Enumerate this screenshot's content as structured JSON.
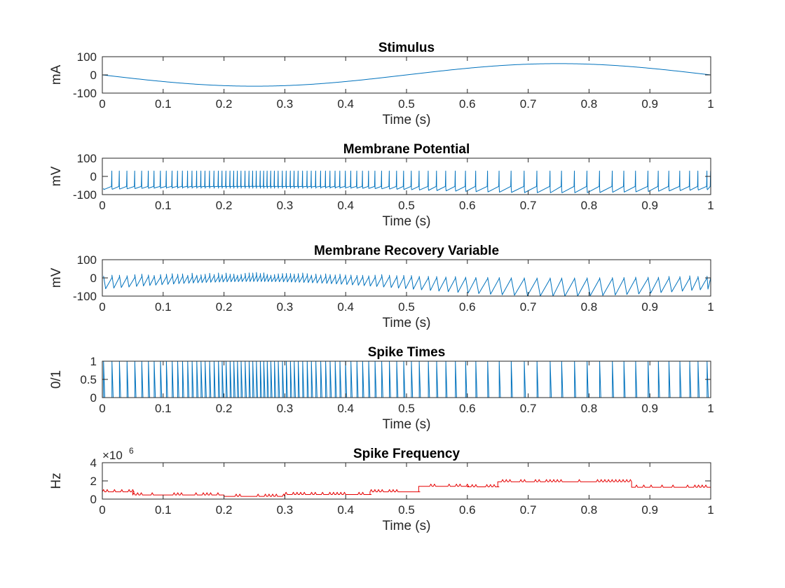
{
  "colors": {
    "blue": "#0072BD",
    "red": "#E60000",
    "axis": "#262626"
  },
  "chart_data": [
    {
      "type": "line",
      "title": "Stimulus",
      "xlabel": "Time (s)",
      "ylabel": "mA",
      "xlim": [
        0,
        1
      ],
      "ylim": [
        -100,
        100
      ],
      "xticks": [
        "0",
        "0.1",
        "0.2",
        "0.3",
        "0.4",
        "0.5",
        "0.6",
        "0.7",
        "0.8",
        "0.9",
        "1"
      ],
      "yticks": [
        "-100",
        "0",
        "100"
      ],
      "grid": false,
      "series": [
        {
          "kind": "sine",
          "color": "blue",
          "amplitude": -62,
          "frequency": 1,
          "x": [
            0,
            0.25,
            0.5,
            0.75,
            1
          ],
          "y": [
            0,
            -62,
            0,
            62,
            0
          ]
        }
      ]
    },
    {
      "type": "line",
      "title": "Membrane Potential",
      "xlabel": "Time (s)",
      "ylabel": "mV",
      "xlim": [
        0,
        1
      ],
      "ylim": [
        -100,
        100
      ],
      "xticks": [
        "0",
        "0.1",
        "0.2",
        "0.3",
        "0.4",
        "0.5",
        "0.6",
        "0.7",
        "0.8",
        "0.9",
        "1"
      ],
      "yticks": [
        "-100",
        "0",
        "100"
      ],
      "grid": false,
      "series": [
        {
          "kind": "spike_train",
          "color": "blue",
          "peak": 30,
          "reset": -65,
          "trough_low": -90,
          "trough_high": -55
        }
      ]
    },
    {
      "type": "line",
      "title": "Membrane Recovery Variable",
      "xlabel": "Time (s)",
      "ylabel": "mV",
      "xlim": [
        0,
        1
      ],
      "ylim": [
        -100,
        100
      ],
      "xticks": [
        "0",
        "0.1",
        "0.2",
        "0.3",
        "0.4",
        "0.5",
        "0.6",
        "0.7",
        "0.8",
        "0.9",
        "1"
      ],
      "yticks": [
        "-100",
        "0",
        "100"
      ],
      "grid": false,
      "series": [
        {
          "kind": "recovery",
          "color": "blue",
          "peak_low": 0,
          "peak_high": 25,
          "trough_low": -100,
          "trough_high": -20
        }
      ]
    },
    {
      "type": "line",
      "title": "Spike Times",
      "xlabel": "Time (s)",
      "ylabel": "0/1",
      "xlim": [
        0,
        1
      ],
      "ylim": [
        0,
        1
      ],
      "xticks": [
        "0",
        "0.1",
        "0.2",
        "0.3",
        "0.4",
        "0.5",
        "0.6",
        "0.7",
        "0.8",
        "0.9",
        "1"
      ],
      "yticks": [
        "0",
        "0.5",
        "1"
      ],
      "grid": false,
      "series": [
        {
          "kind": "binary_spikes",
          "color": "blue"
        }
      ]
    },
    {
      "type": "line",
      "title": "Spike Frequency",
      "xlabel": "Time (s)",
      "ylabel": "Hz",
      "xlim": [
        0,
        1
      ],
      "ylim": [
        0,
        4
      ],
      "y_exponent": {
        "base": "×10",
        "power": "6"
      },
      "xticks": [
        "0",
        "0.1",
        "0.2",
        "0.3",
        "0.4",
        "0.5",
        "0.6",
        "0.7",
        "0.8",
        "0.9",
        "1"
      ],
      "yticks": [
        "0",
        "2",
        "4"
      ],
      "grid": false,
      "series": [
        {
          "kind": "frequency",
          "color": "red",
          "unit_scale": "1e6",
          "levels": [
            {
              "x": [
                0,
                0.05
              ],
              "y": 0.8
            },
            {
              "x": [
                0.05,
                0.2
              ],
              "y": 0.45
            },
            {
              "x": [
                0.2,
                0.3
              ],
              "y": 0.3
            },
            {
              "x": [
                0.3,
                0.44
              ],
              "y": 0.5
            },
            {
              "x": [
                0.44,
                0.52
              ],
              "y": 0.8
            },
            {
              "x": [
                0.52,
                0.6
              ],
              "y": 1.4
            },
            {
              "x": [
                0.6,
                0.65
              ],
              "y": 1.35
            },
            {
              "x": [
                0.65,
                0.87
              ],
              "y": 1.9
            },
            {
              "x": [
                0.87,
                1.0
              ],
              "y": 1.3
            }
          ]
        }
      ]
    }
  ]
}
